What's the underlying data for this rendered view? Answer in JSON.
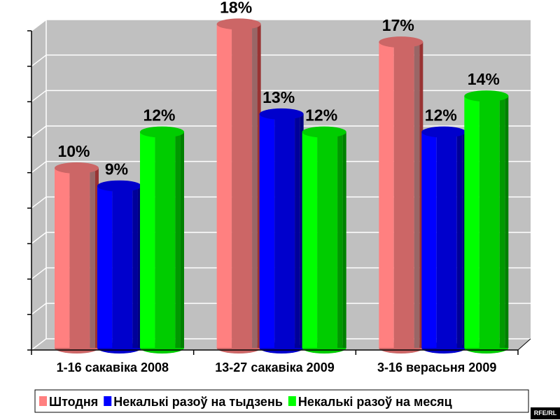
{
  "chart_data": {
    "type": "bar",
    "style": "3d-cylinder",
    "categories": [
      "1-16 сакавіка 2008",
      "13-27 сакавіка 2009",
      "3-16 верасьня 2009"
    ],
    "series": [
      {
        "name": "Штодня",
        "values": [
          10,
          18,
          17
        ],
        "labels": [
          "10%",
          "18%",
          "17%"
        ],
        "colors": {
          "light": "#ff8080",
          "mid": "#cc6666",
          "dark": "#996666",
          "edge": "#993333"
        }
      },
      {
        "name": "Некалькі разоў на тыдзень",
        "values": [
          9,
          13,
          12
        ],
        "labels": [
          "9%",
          "13%",
          "12%"
        ],
        "colors": {
          "light": "#0000ff",
          "mid": "#0000cc",
          "dark": "#000099",
          "edge": "#000080"
        }
      },
      {
        "name": "Некалькі разоў на месяц",
        "values": [
          12,
          12,
          14
        ],
        "labels": [
          "12%",
          "12%",
          "14%"
        ],
        "colors": {
          "light": "#00ff00",
          "mid": "#00cc00",
          "dark": "#009900",
          "edge": "#008000"
        }
      }
    ],
    "ylim": [
      0,
      18
    ],
    "ytick_step": 2,
    "grid": true,
    "wall_color": "#c0c0c0",
    "legend_position": "bottom",
    "title": "",
    "xlabel": "",
    "ylabel": ""
  },
  "watermark": "RFE/RL"
}
